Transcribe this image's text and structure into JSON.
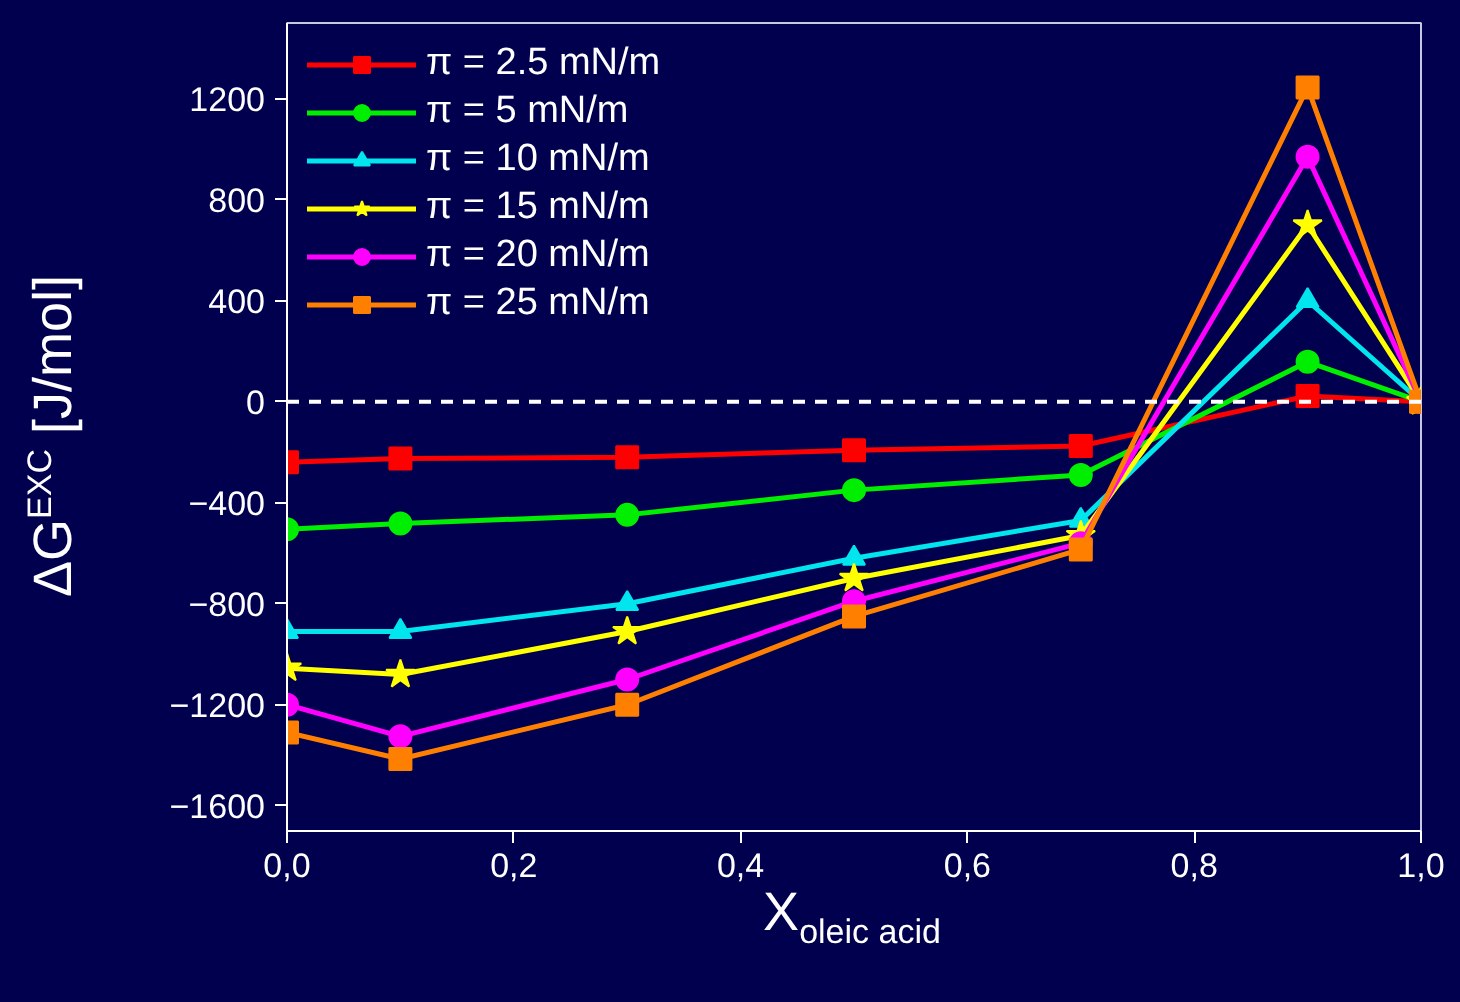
{
  "chart_data": {
    "type": "line",
    "xlabel": "X$_{oleic acid}$",
    "ylabel": "ΔG$^{EXC}$ [J/mol]",
    "x": [
      0,
      0.1,
      0.3,
      0.5,
      0.7,
      0.9,
      1.0
    ],
    "xlim": [
      0,
      1.0
    ],
    "xticks": [
      {
        "value": 0,
        "label": "0,0"
      },
      {
        "value": 0.2,
        "label": "0,2"
      },
      {
        "value": 0.4,
        "label": "0,4"
      },
      {
        "value": 0.6,
        "label": "0,6"
      },
      {
        "value": 0.8,
        "label": "0,8"
      },
      {
        "value": 1.0,
        "label": "1,0"
      }
    ],
    "ylim": [
      -1700,
      1500
    ],
    "yticks": [
      -1600,
      -1200,
      -800,
      -400,
      0,
      400,
      800,
      1200
    ],
    "grid": false,
    "legend": "top left",
    "ref_lines": [
      {
        "axis": "y",
        "value": 0,
        "label": null,
        "color": "#ffffff",
        "line_style": "dashed"
      }
    ],
    "series": [
      {
        "name": "π = 2.5 mN/m",
        "color": "#ff0000",
        "marker": "square",
        "values": [
          -240,
          -225,
          -220,
          -192,
          -175,
          23,
          0
        ]
      },
      {
        "name": "π = 5 mN/m",
        "color": "#00ee00",
        "marker": "circle",
        "values": [
          -505,
          -482,
          -448,
          -350,
          -290,
          158,
          0
        ]
      },
      {
        "name": "π = 10 mN/m",
        "color": "#00e5ee",
        "marker": "triangle",
        "values": [
          -910,
          -910,
          -800,
          -620,
          -470,
          400,
          0
        ]
      },
      {
        "name": "π = 15 mN/m",
        "color": "#ffff00",
        "marker": "star",
        "values": [
          -1055,
          -1080,
          -910,
          -700,
          -530,
          700,
          0
        ]
      },
      {
        "name": "π = 20 mN/m",
        "color": "#ff00ff",
        "marker": "circle",
        "values": [
          -1200,
          -1325,
          -1100,
          -790,
          -560,
          970,
          0
        ]
      },
      {
        "name": "π = 25 mN/m",
        "color": "#ff8000",
        "marker": "square",
        "values": [
          -1310,
          -1415,
          -1200,
          -850,
          -585,
          1245,
          0
        ]
      }
    ]
  }
}
